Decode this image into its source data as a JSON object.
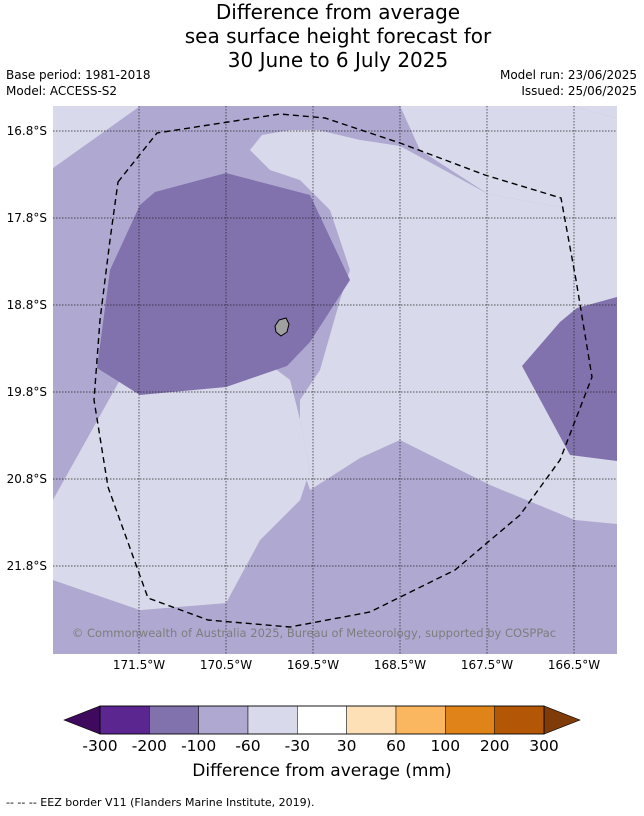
{
  "title": {
    "line1": "Difference from average",
    "line2": "sea surface height forecast for",
    "line3": "30 June to 6 July 2025"
  },
  "meta": {
    "base_period": "Base period: 1981-2018",
    "model": "Model: ACCESS-S2",
    "model_run": "Model run: 23/06/2025",
    "issued": "Issued: 25/06/2025"
  },
  "map": {
    "lat_labels": [
      "16.8°S",
      "17.8°S",
      "18.8°S",
      "19.8°S",
      "20.8°S",
      "21.8°S"
    ],
    "lon_labels": [
      "171.5°W",
      "170.5°W",
      "169.5°W",
      "168.5°W",
      "167.5°W",
      "166.5°W"
    ],
    "copyright": "© Commonwealth of Australia 2025, Bureau of Meteorology, supported by COSPPac",
    "fill_colors": {
      "band_-60_-30": "#d8d9ea",
      "band_-100_-60": "#afa9d1",
      "band_-200_-100": "#8172ae",
      "land": "#a0a0a0"
    },
    "boundary": "EEZ border (dashed)"
  },
  "colorbar": {
    "ticks": [
      "-300",
      "-200",
      "-100",
      "-60",
      "-30",
      "30",
      "60",
      "100",
      "200",
      "300"
    ],
    "colors": [
      "#3f0a5e",
      "#5b2690",
      "#8172ae",
      "#afa9d1",
      "#d8d9ea",
      "#ffffff",
      "#fde0b6",
      "#fbb660",
      "#e08319",
      "#b35707",
      "#7f3b08"
    ],
    "label": "Difference from average (mm)"
  },
  "footer": {
    "eez_note": "-- -- -- EEZ border V11 (Flanders Marine Institute, 2019)."
  }
}
